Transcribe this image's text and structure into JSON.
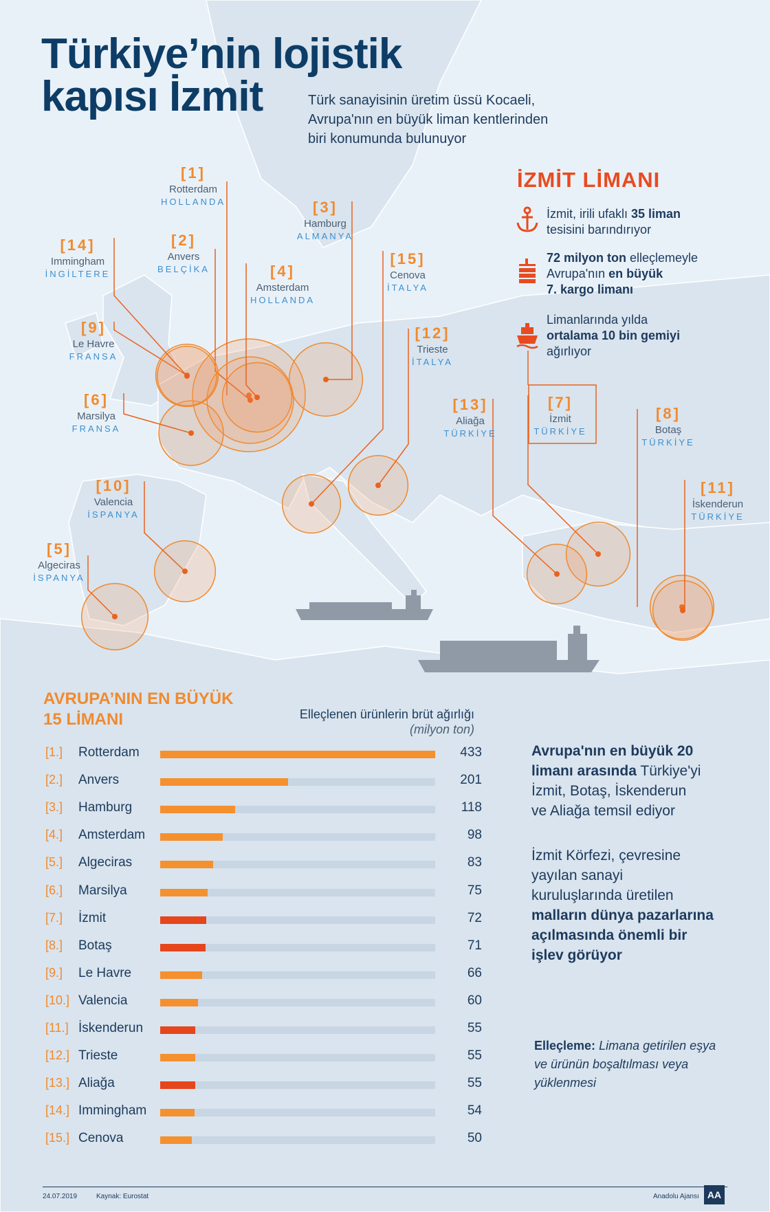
{
  "header": {
    "title_line1": "Türkiye’nin lojistik",
    "title_line2": "kapısı İzmit",
    "subtitle_line1": "Türk sanayisinin üretim üssü Kocaeli,",
    "subtitle_line2": "Avrupa'nın en büyük liman kentlerinden",
    "subtitle_line3": "biri konumunda bulunuyor"
  },
  "izmit_box": {
    "title": "İZMİT LİMANI",
    "fact1": {
      "a": "İzmit, irili ufaklı ",
      "b": "35 liman",
      "c": "tesisini barındırıyor"
    },
    "fact2": {
      "a": "72 milyon ton",
      "b": " elleçlemeyle",
      "c": "Avrupa'nın ",
      "d": "en büyük",
      "e": "7. kargo limanı"
    },
    "fact3": {
      "a": "Limanlarında yılda",
      "b": "ortalama 10 bin gemiyi",
      "c": "ağırlıyor"
    },
    "icons": [
      "anchor-icon",
      "container-crane-icon",
      "ship-icon"
    ]
  },
  "map_ports": [
    {
      "num": "[1]",
      "name": "Rotterdam",
      "country": "HOLLANDA"
    },
    {
      "num": "[2]",
      "name": "Anvers",
      "country": "BELÇİKA"
    },
    {
      "num": "[3]",
      "name": "Hamburg",
      "country": "ALMANYA"
    },
    {
      "num": "[4]",
      "name": "Amsterdam",
      "country": "HOLLANDA"
    },
    {
      "num": "[5]",
      "name": "Algeciras",
      "country": "İSPANYA"
    },
    {
      "num": "[6]",
      "name": "Marsilya",
      "country": "FRANSA"
    },
    {
      "num": "[7]",
      "name": "İzmit",
      "country": "TÜRKİYE"
    },
    {
      "num": "[8]",
      "name": "Botaş",
      "country": "TÜRKİYE"
    },
    {
      "num": "[9]",
      "name": "Le Havre",
      "country": "FRANSA"
    },
    {
      "num": "[10]",
      "name": "Valencia",
      "country": "İSPANYA"
    },
    {
      "num": "[11]",
      "name": "İskenderun",
      "country": "TÜRKİYE"
    },
    {
      "num": "[12]",
      "name": "Trieste",
      "country": "İTALYA"
    },
    {
      "num": "[13]",
      "name": "Aliağa",
      "country": "TÜRKİYE"
    },
    {
      "num": "[14]",
      "name": "Immingham",
      "country": "İNGİLTERE"
    },
    {
      "num": "[15]",
      "name": "Cenova",
      "country": "İTALYA"
    }
  ],
  "chart_data": {
    "type": "bar",
    "orientation": "horizontal",
    "title": "AVRUPA’NIN EN BÜYÜK 15 LİMANI",
    "title_line1": "AVRUPA’NIN EN BÜYÜK",
    "title_line2": "15 LİMANI",
    "value_label": "Elleçlenen ürünlerin brüt ağırlığı",
    "unit_label": "(milyon ton)",
    "xlim": [
      0,
      433
    ],
    "ranks": [
      "[1.]",
      "[2.]",
      "[3.]",
      "[4.]",
      "[5.]",
      "[6.]",
      "[7.]",
      "[8.]",
      "[9.]",
      "[10.]",
      "[11.]",
      "[12.]",
      "[13.]",
      "[14.]",
      "[15.]"
    ],
    "categories": [
      "Rotterdam",
      "Anvers",
      "Hamburg",
      "Amsterdam",
      "Algeciras",
      "Marsilya",
      "İzmit",
      "Botaş",
      "Le Havre",
      "Valencia",
      "İskenderun",
      "Trieste",
      "Aliağa",
      "Immingham",
      "Cenova"
    ],
    "values": [
      433,
      201,
      118,
      98,
      83,
      75,
      72,
      71,
      66,
      60,
      55,
      55,
      55,
      54,
      50
    ],
    "turkish": [
      false,
      false,
      false,
      false,
      false,
      false,
      true,
      true,
      false,
      false,
      true,
      false,
      true,
      false,
      false
    ],
    "colors": {
      "default": "#f5902f",
      "turkish": "#e5461c",
      "track": "#c8d6e3"
    }
  },
  "right_panel": {
    "p1_bold1": "Avrupa'nın en büyük 20",
    "p1_bold2": "limanı arasında",
    "p1_rest2": " Türkiye'yi",
    "p1_line3": "İzmit, Botaş, İskenderun",
    "p1_line4": "ve Aliağa temsil ediyor",
    "p2_line1": "İzmit Körfezi, çevresine",
    "p2_line2": "yayılan sanayi",
    "p2_line3": "kuruluşlarında üretilen",
    "p2_bold1": "malların dünya pazarlarına",
    "p2_bold2": "açılmasında önemli bir",
    "p2_bold3": "işlev görüyor",
    "def_term": "Elleçleme:",
    "def_text1": " Limana getirilen eşya",
    "def_text2": "ve ürünün boşaltılması veya",
    "def_text3": "yüklenmesi"
  },
  "footer": {
    "date": "24.07.2019",
    "source": "Kaynak: Eurostat",
    "agency": "Anadolu Ajansı",
    "logo_text": "AA"
  }
}
